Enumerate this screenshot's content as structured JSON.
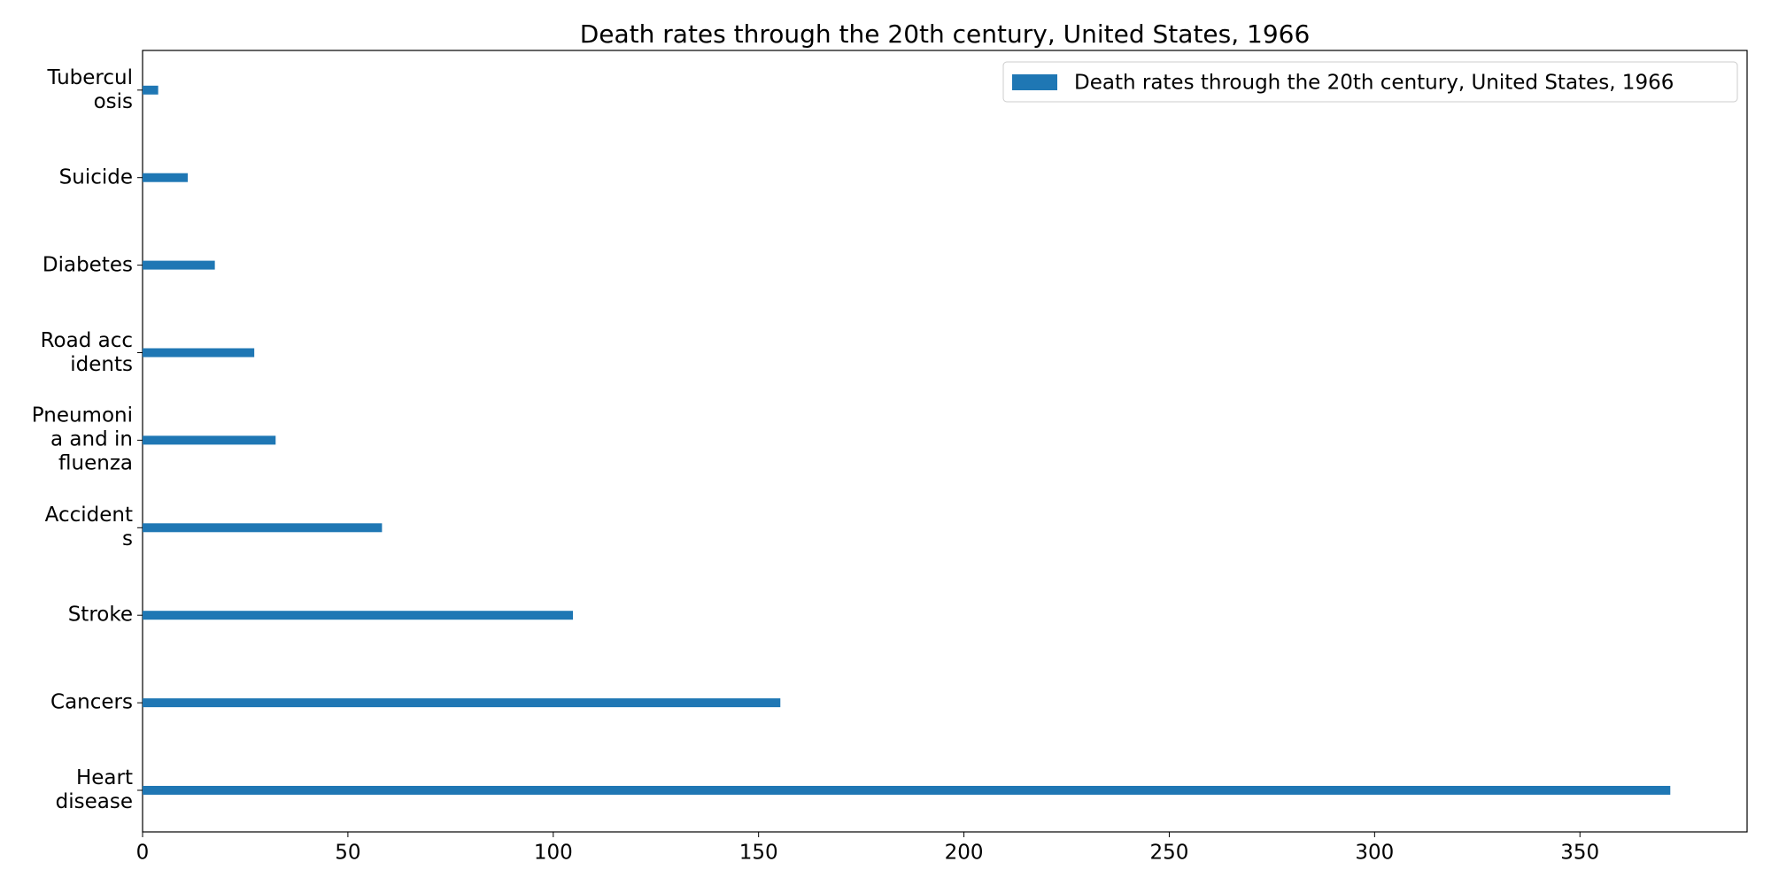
{
  "chart_data": {
    "type": "barh",
    "title": "Death rates through the 20th century, United States, 1966",
    "categories": [
      "Heart\ndisease",
      "Cancers",
      "Stroke",
      "Accident\ns",
      "Pneumoni\na and in\nfluenza",
      "Road acc\nidents",
      "Diabetes",
      "Suicide",
      "Tubercul\nosis"
    ],
    "series": [
      {
        "name": "Death rates through the 20th century, United States, 1966",
        "color": "#1f77b4",
        "values": [
          372,
          155.3,
          104.8,
          58.3,
          32.4,
          27.2,
          17.6,
          11.0,
          3.8
        ]
      }
    ],
    "xlim": [
      0,
      390.7
    ],
    "xticks": [
      0,
      50,
      100,
      150,
      200,
      250,
      300,
      350
    ],
    "legend": "upper right"
  }
}
